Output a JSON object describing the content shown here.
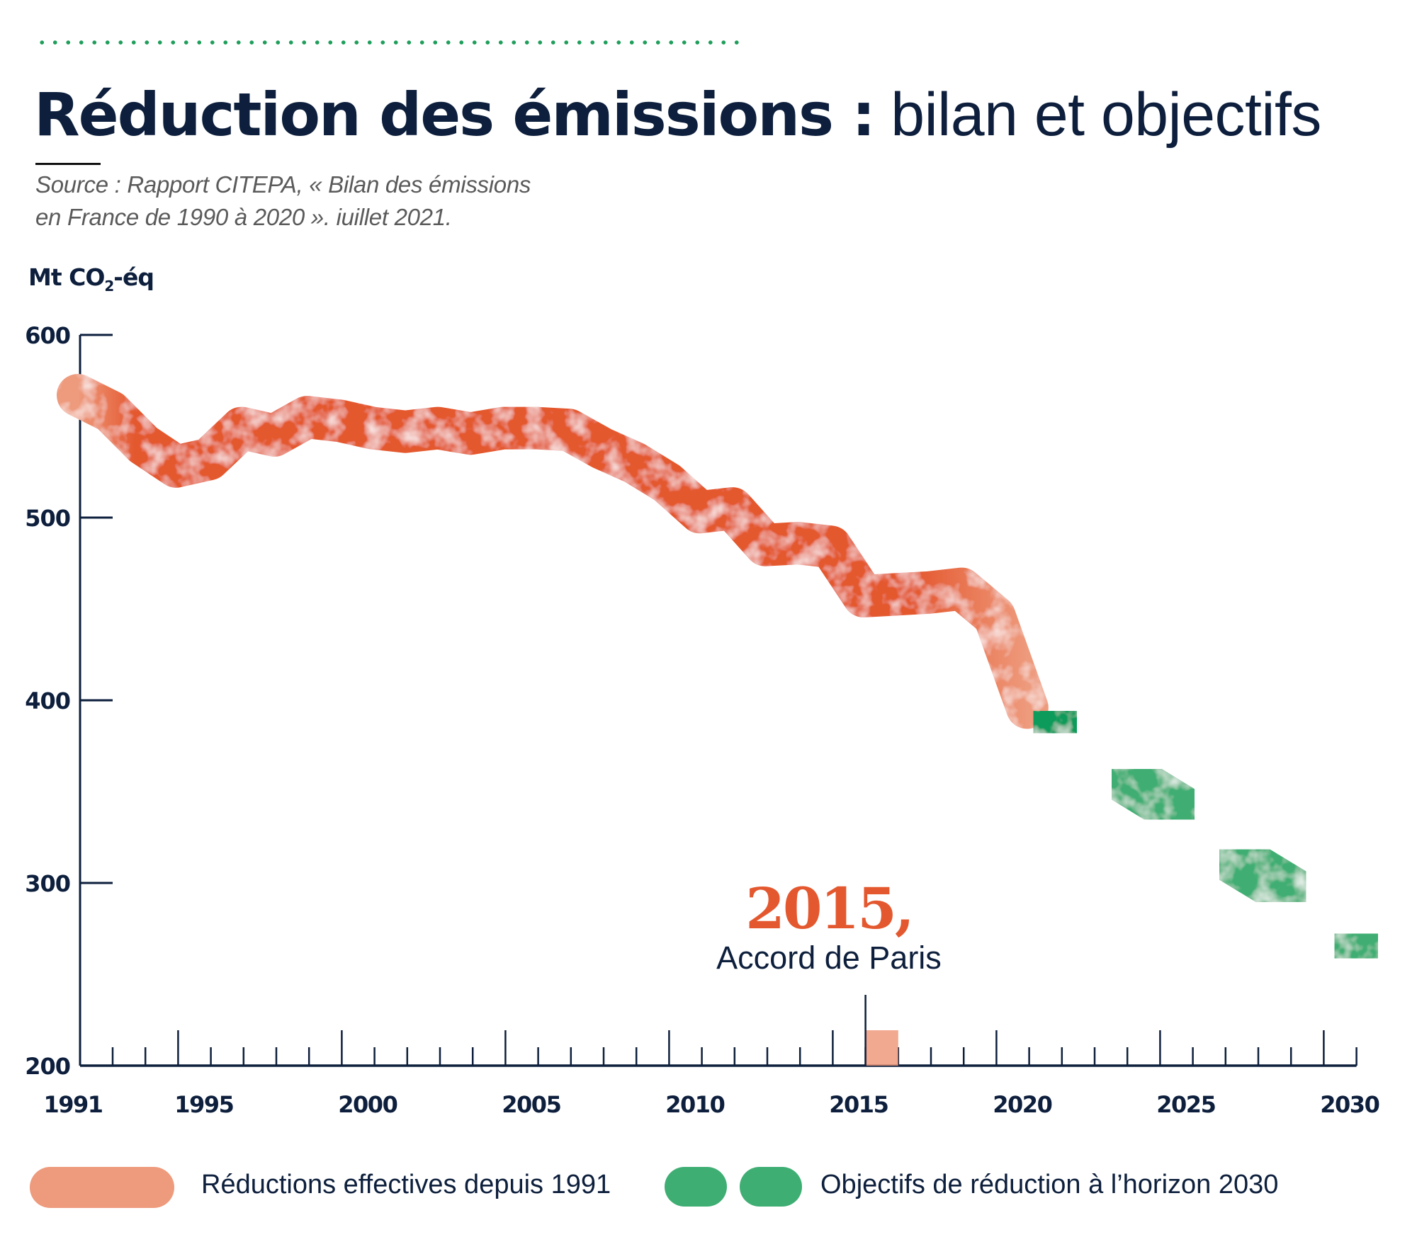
{
  "header": {
    "title_bold": "Réduction des émissions :",
    "title_light": " bilan et objectifs",
    "source_line1": "Source : Rapport CITEPA, « Bilan des émissions",
    "source_line2": "en France de 1990 à 2020 ». iuillet 2021.",
    "unit_main": "Mt CO",
    "unit_sub": "2",
    "unit_suffix": "-éq"
  },
  "annotation": {
    "year": "2015,",
    "label": "Accord de Paris"
  },
  "legend": {
    "actual": "Réductions effectives depuis 1991",
    "target": "Objectifs de réduction à l’horizon 2030"
  },
  "colors": {
    "actual": "#e4582f",
    "actual_light": "#ee9a7c",
    "target": "#0f9b5c",
    "target_light": "#3fae73",
    "axis": "#0d1f3c",
    "dots": "#1e9e5a"
  },
  "chart_data": {
    "type": "line",
    "title": "Réduction des émissions : bilan et objectifs",
    "ylabel": "Mt CO2-éq",
    "xlabel": "",
    "ylim": [
      200,
      600
    ],
    "xlim": [
      1991,
      2030
    ],
    "yticks": [
      200,
      300,
      400,
      500,
      600
    ],
    "xtick_labels": [
      "1991",
      "1995",
      "2000",
      "2005",
      "2010",
      "2015",
      "2020",
      "2025",
      "2030"
    ],
    "grid": false,
    "legend_position": "bottom",
    "series": [
      {
        "name": "Réductions effectives depuis 1991",
        "style": "solid",
        "x": [
          1991,
          1992,
          1993,
          1994,
          1995,
          1996,
          1997,
          1998,
          1999,
          2000,
          2001,
          2002,
          2003,
          2004,
          2005,
          2006,
          2007,
          2008,
          2009,
          2010,
          2011,
          2012,
          2013,
          2014,
          2015,
          2016,
          2017,
          2018,
          2019,
          2020
        ],
        "values": [
          567,
          558,
          540,
          528,
          532,
          549,
          545,
          555,
          553,
          549,
          547,
          549,
          546,
          549,
          549,
          548,
          538,
          530,
          519,
          503,
          505,
          485,
          486,
          484,
          457,
          458,
          459,
          461,
          446,
          396
        ]
      },
      {
        "name": "Objectifs de réduction à l’horizon 2030",
        "style": "dashed",
        "segments": [
          {
            "x": [
              2020.3,
              2021.4
            ],
            "values": [
              393,
              383
            ]
          },
          {
            "x": [
              2022.8,
              2024.9
            ],
            "values": [
              360,
              337
            ]
          },
          {
            "x": [
              2026.1,
              2028.3
            ],
            "values": [
              316,
              292
            ]
          },
          {
            "x": [
              2029.5,
              2030.6
            ],
            "values": [
              271,
              260
            ]
          }
        ]
      }
    ],
    "annotations": [
      {
        "x": 2015,
        "text": "2015, Accord de Paris"
      }
    ]
  }
}
